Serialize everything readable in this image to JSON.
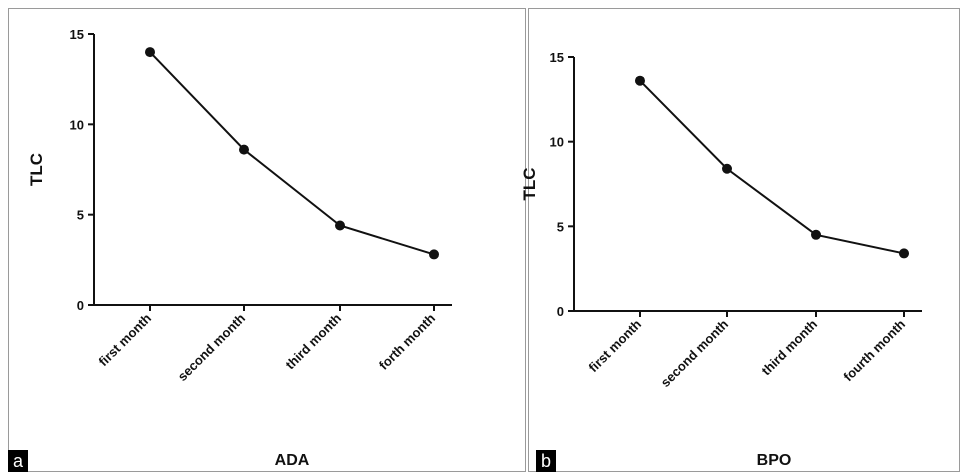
{
  "chart_data": [
    {
      "type": "line",
      "panel": "a",
      "categories": [
        "first month",
        "second month",
        "third month",
        "forth month"
      ],
      "values": [
        14.0,
        8.6,
        4.4,
        2.8
      ],
      "ylabel": "TLC",
      "xlabel": "ADA",
      "ylim": [
        0,
        15
      ],
      "yticks": [
        "0",
        "5",
        "10",
        "15"
      ],
      "grid": false,
      "line_color": "#111111"
    },
    {
      "type": "line",
      "panel": "b",
      "categories": [
        "first month",
        "second month",
        "third month",
        "fourth month"
      ],
      "values": [
        13.6,
        8.4,
        4.5,
        3.4
      ],
      "ylabel": "TLC",
      "xlabel": "BPO",
      "ylim": [
        0,
        15
      ],
      "yticks": [
        "0",
        "5",
        "10",
        "15"
      ],
      "grid": false,
      "line_color": "#111111"
    }
  ]
}
